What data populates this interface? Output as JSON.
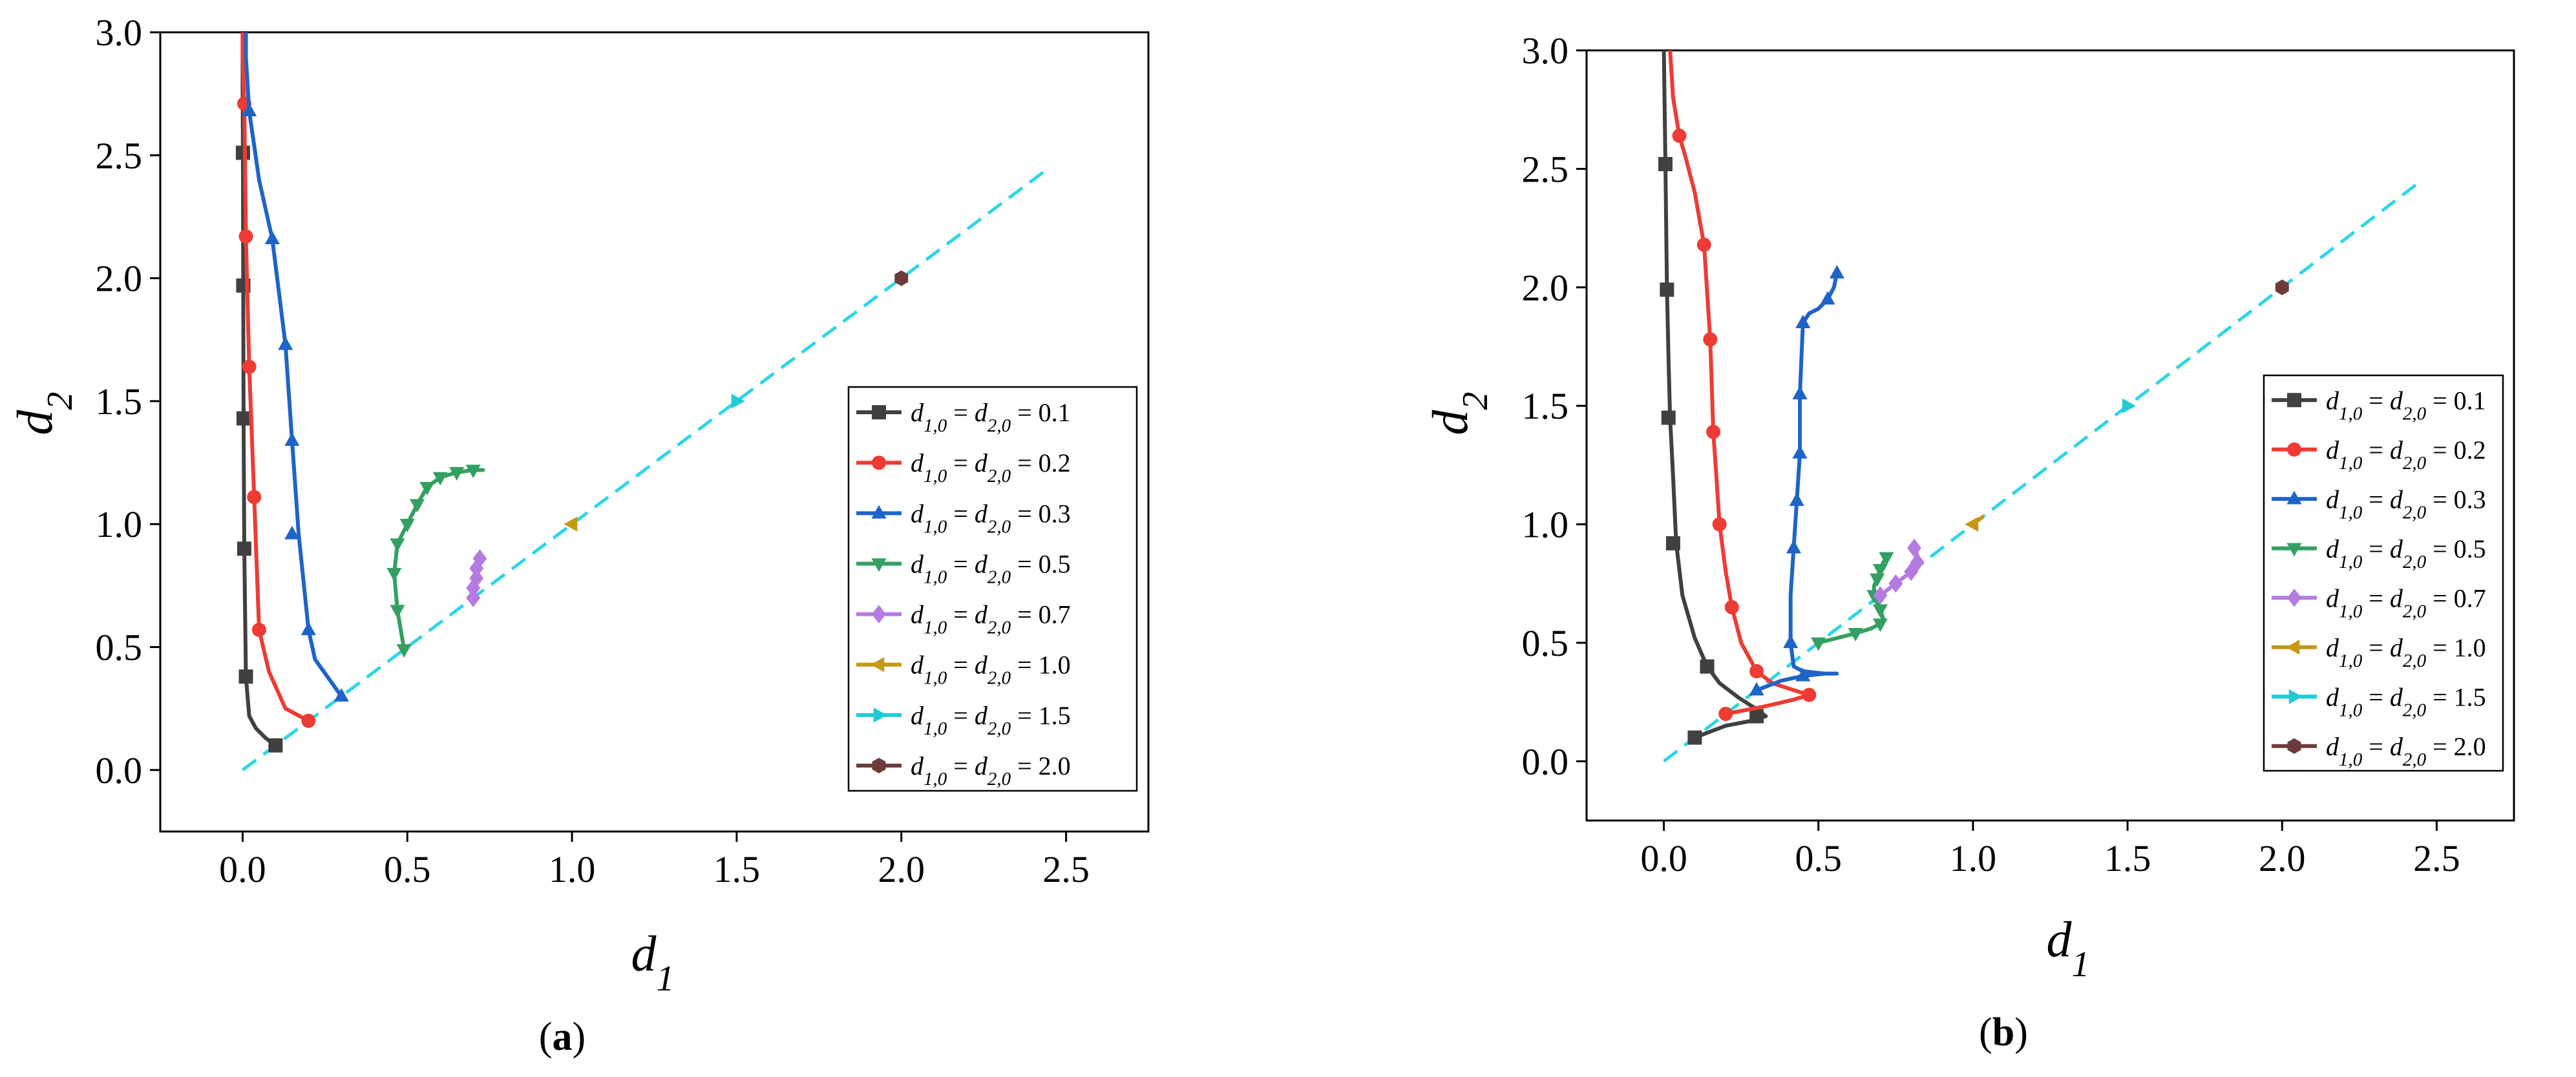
{
  "chart_data": [
    {
      "panel_label": "a",
      "type": "line",
      "xlabel": "d1",
      "ylabel": "d2",
      "xlim": [
        -0.25,
        2.75
      ],
      "ylim": [
        -0.25,
        3.0
      ],
      "xticks": [
        "0.0",
        "0.5",
        "1.0",
        "1.5",
        "2.0",
        "2.5"
      ],
      "yticks": [
        "0.0",
        "0.5",
        "1.0",
        "1.5",
        "2.0",
        "2.5",
        "3.0"
      ],
      "legend_position": "lower-right",
      "series": [
        {
          "name": "d1,0 = d2,0 = 0.1",
          "color": "#404040",
          "marker": "square",
          "x": [
            0.1,
            0.07,
            0.04,
            0.02,
            0.01,
            0.005,
            0.003,
            0.002,
            0.001,
            0.0,
            0.0
          ],
          "y": [
            0.1,
            0.13,
            0.17,
            0.22,
            0.38,
            0.9,
            1.43,
            1.97,
            2.51,
            2.8,
            3.0
          ],
          "markers_x": [
            0.1,
            0.01,
            0.005,
            0.003,
            0.002,
            0.001
          ],
          "markers_y": [
            0.1,
            0.38,
            0.9,
            1.43,
            1.97,
            2.51
          ]
        },
        {
          "name": "d1,0 = d2,0 = 0.2",
          "color": "#ee3b33",
          "marker": "circle",
          "x": [
            0.2,
            0.13,
            0.08,
            0.05,
            0.035,
            0.02,
            0.01,
            0.005,
            0.0,
            0.0
          ],
          "y": [
            0.2,
            0.25,
            0.4,
            0.57,
            1.11,
            1.64,
            2.17,
            2.71,
            2.9,
            3.0
          ],
          "markers_x": [
            0.2,
            0.05,
            0.035,
            0.02,
            0.01,
            0.005
          ],
          "markers_y": [
            0.2,
            0.57,
            1.11,
            1.64,
            2.17,
            2.71
          ]
        },
        {
          "name": "d1,0 = d2,0 = 0.3",
          "color": "#1e64c8",
          "marker": "triangle-up",
          "x": [
            0.3,
            0.22,
            0.2,
            0.17,
            0.15,
            0.13,
            0.09,
            0.05,
            0.02,
            0.01,
            0.01
          ],
          "y": [
            0.3,
            0.45,
            0.57,
            0.96,
            1.34,
            1.73,
            2.16,
            2.4,
            2.68,
            2.9,
            3.0
          ],
          "markers_x": [
            0.3,
            0.2,
            0.15,
            0.15,
            0.13,
            0.09,
            0.02
          ],
          "markers_y": [
            0.3,
            0.57,
            0.96,
            1.34,
            1.73,
            2.16,
            2.68
          ]
        },
        {
          "name": "d1,0 = d2,0 = 0.5",
          "color": "#33a062",
          "marker": "triangle-down",
          "x": [
            0.49,
            0.47,
            0.46,
            0.47,
            0.5,
            0.53,
            0.56,
            0.6,
            0.65,
            0.7,
            0.73
          ],
          "y": [
            0.49,
            0.65,
            0.8,
            0.92,
            1.0,
            1.08,
            1.15,
            1.19,
            1.21,
            1.22,
            1.22
          ],
          "markers_x": [
            0.49,
            0.47,
            0.46,
            0.47,
            0.5,
            0.53,
            0.56,
            0.6,
            0.65,
            0.7
          ],
          "markers_y": [
            0.49,
            0.65,
            0.8,
            0.92,
            1.0,
            1.08,
            1.15,
            1.19,
            1.21,
            1.22
          ]
        },
        {
          "name": "d1,0 = d2,0 = 0.7",
          "color": "#b57be0",
          "marker": "diamond",
          "x": [
            0.7,
            0.7,
            0.71,
            0.71,
            0.72,
            0.72
          ],
          "y": [
            0.7,
            0.74,
            0.78,
            0.82,
            0.85,
            0.87
          ],
          "markers_x": [
            0.7,
            0.7,
            0.71,
            0.71,
            0.72
          ],
          "markers_y": [
            0.7,
            0.74,
            0.78,
            0.82,
            0.86
          ]
        },
        {
          "name": "d1,0 = d2,0 = 1.0",
          "color": "#c39a14",
          "marker": "triangle-left",
          "x": [
            1.0
          ],
          "y": [
            1.0
          ],
          "markers_x": [
            1.0
          ],
          "markers_y": [
            1.0
          ]
        },
        {
          "name": "d1,0 = d2,0 = 1.5",
          "color": "#20cbd4",
          "marker": "triangle-right",
          "x": [
            1.5
          ],
          "y": [
            1.5
          ],
          "markers_x": [
            1.5
          ],
          "markers_y": [
            1.5
          ]
        },
        {
          "name": "d1,0 = d2,0 = 2.0",
          "color": "#6e3b3b",
          "marker": "hexagon",
          "x": [
            2.0
          ],
          "y": [
            2.0
          ],
          "markers_x": [
            2.0
          ],
          "markers_y": [
            2.0
          ]
        }
      ],
      "reference_line": {
        "color": "#2fd6e6",
        "x": [
          0.0,
          2.45
        ],
        "y": [
          0.0,
          2.45
        ]
      }
    },
    {
      "panel_label": "b",
      "type": "line",
      "xlabel": "d1",
      "ylabel": "d2",
      "xlim": [
        -0.25,
        2.75
      ],
      "ylim": [
        -0.25,
        3.0
      ],
      "xticks": [
        "0.0",
        "0.5",
        "1.0",
        "1.5",
        "2.0",
        "2.5"
      ],
      "yticks": [
        "0.0",
        "0.5",
        "1.0",
        "1.5",
        "2.0",
        "2.5",
        "3.0"
      ],
      "legend_position": "lower-right",
      "series": [
        {
          "name": "d1,0 = d2,0 = 0.1",
          "color": "#404040",
          "marker": "square",
          "x": [
            0.1,
            0.2,
            0.28,
            0.33,
            0.3,
            0.24,
            0.18,
            0.14,
            0.1,
            0.06,
            0.04,
            0.03,
            0.02,
            0.015,
            0.01,
            0.005,
            0.0
          ],
          "y": [
            0.1,
            0.15,
            0.17,
            0.19,
            0.22,
            0.27,
            0.33,
            0.4,
            0.52,
            0.7,
            0.92,
            1.2,
            1.45,
            1.7,
            1.99,
            2.52,
            3.0
          ],
          "markers_x": [
            0.1,
            0.3,
            0.14,
            0.03,
            0.015,
            0.01,
            0.005
          ],
          "markers_y": [
            0.1,
            0.19,
            0.4,
            0.92,
            1.45,
            1.99,
            2.52
          ]
        },
        {
          "name": "d1,0 = d2,0 = 0.2",
          "color": "#ee3b33",
          "marker": "circle",
          "x": [
            0.2,
            0.32,
            0.42,
            0.47,
            0.42,
            0.35,
            0.3,
            0.25,
            0.22,
            0.2,
            0.18,
            0.17,
            0.16,
            0.15,
            0.13,
            0.1,
            0.07,
            0.05,
            0.03,
            0.02
          ],
          "y": [
            0.2,
            0.23,
            0.26,
            0.28,
            0.3,
            0.33,
            0.38,
            0.5,
            0.65,
            0.8,
            1.0,
            1.2,
            1.39,
            1.78,
            2.18,
            2.4,
            2.55,
            2.64,
            2.8,
            3.0
          ],
          "markers_x": [
            0.2,
            0.47,
            0.3,
            0.22,
            0.18,
            0.16,
            0.15,
            0.13,
            0.05
          ],
          "markers_y": [
            0.2,
            0.28,
            0.38,
            0.65,
            1.0,
            1.39,
            1.78,
            2.18,
            2.64
          ]
        },
        {
          "name": "d1,0 = d2,0 = 0.3",
          "color": "#1e64c8",
          "marker": "triangle-up",
          "x": [
            0.3,
            0.38,
            0.45,
            0.52,
            0.56,
            0.52,
            0.45,
            0.42,
            0.41,
            0.41,
            0.42,
            0.43,
            0.44,
            0.44,
            0.45,
            0.47,
            0.5,
            0.53,
            0.55,
            0.56
          ],
          "y": [
            0.3,
            0.34,
            0.36,
            0.37,
            0.37,
            0.37,
            0.38,
            0.4,
            0.5,
            0.7,
            0.9,
            1.1,
            1.3,
            1.55,
            1.85,
            1.89,
            1.91,
            1.95,
            2.0,
            2.06
          ],
          "markers_x": [
            0.3,
            0.45,
            0.41,
            0.42,
            0.43,
            0.44,
            0.44,
            0.45,
            0.53,
            0.56
          ],
          "markers_y": [
            0.3,
            0.36,
            0.5,
            0.9,
            1.1,
            1.3,
            1.55,
            1.85,
            1.95,
            2.06
          ]
        },
        {
          "name": "d1,0 = d2,0 = 0.5",
          "color": "#33a062",
          "marker": "triangle-down",
          "x": [
            0.5,
            0.56,
            0.62,
            0.67,
            0.7,
            0.71,
            0.7,
            0.68,
            0.68,
            0.69,
            0.7,
            0.71,
            0.72
          ],
          "y": [
            0.5,
            0.52,
            0.54,
            0.56,
            0.58,
            0.6,
            0.64,
            0.7,
            0.74,
            0.77,
            0.81,
            0.84,
            0.86
          ],
          "markers_x": [
            0.5,
            0.62,
            0.7,
            0.7,
            0.68,
            0.69,
            0.7,
            0.72
          ],
          "markers_y": [
            0.5,
            0.54,
            0.58,
            0.64,
            0.7,
            0.77,
            0.81,
            0.86
          ]
        },
        {
          "name": "d1,0 = d2,0 = 0.7",
          "color": "#b57be0",
          "marker": "diamond",
          "x": [
            0.7,
            0.75,
            0.8,
            0.82,
            0.82,
            0.81
          ],
          "y": [
            0.7,
            0.75,
            0.8,
            0.84,
            0.87,
            0.9
          ],
          "markers_x": [
            0.7,
            0.75,
            0.8,
            0.82,
            0.81
          ],
          "markers_y": [
            0.7,
            0.75,
            0.8,
            0.84,
            0.9
          ]
        },
        {
          "name": "d1,0 = d2,0 = 1.0",
          "color": "#c39a14",
          "marker": "triangle-left",
          "x": [
            1.0,
            1.03
          ],
          "y": [
            1.0,
            1.03
          ],
          "markers_x": [
            1.0
          ],
          "markers_y": [
            1.0
          ]
        },
        {
          "name": "d1,0 = d2,0 = 1.5",
          "color": "#20cbd4",
          "marker": "triangle-right",
          "x": [
            1.5
          ],
          "y": [
            1.5
          ],
          "markers_x": [
            1.5
          ],
          "markers_y": [
            1.5
          ]
        },
        {
          "name": "d1,0 = d2,0 = 2.0",
          "color": "#6e3b3b",
          "marker": "hexagon",
          "x": [
            2.0
          ],
          "y": [
            2.0
          ],
          "markers_x": [
            2.0
          ],
          "markers_y": [
            2.0
          ]
        }
      ],
      "reference_line": {
        "color": "#2fd6e6",
        "x": [
          0.0,
          2.45
        ],
        "y": [
          0.0,
          2.45
        ]
      }
    }
  ]
}
